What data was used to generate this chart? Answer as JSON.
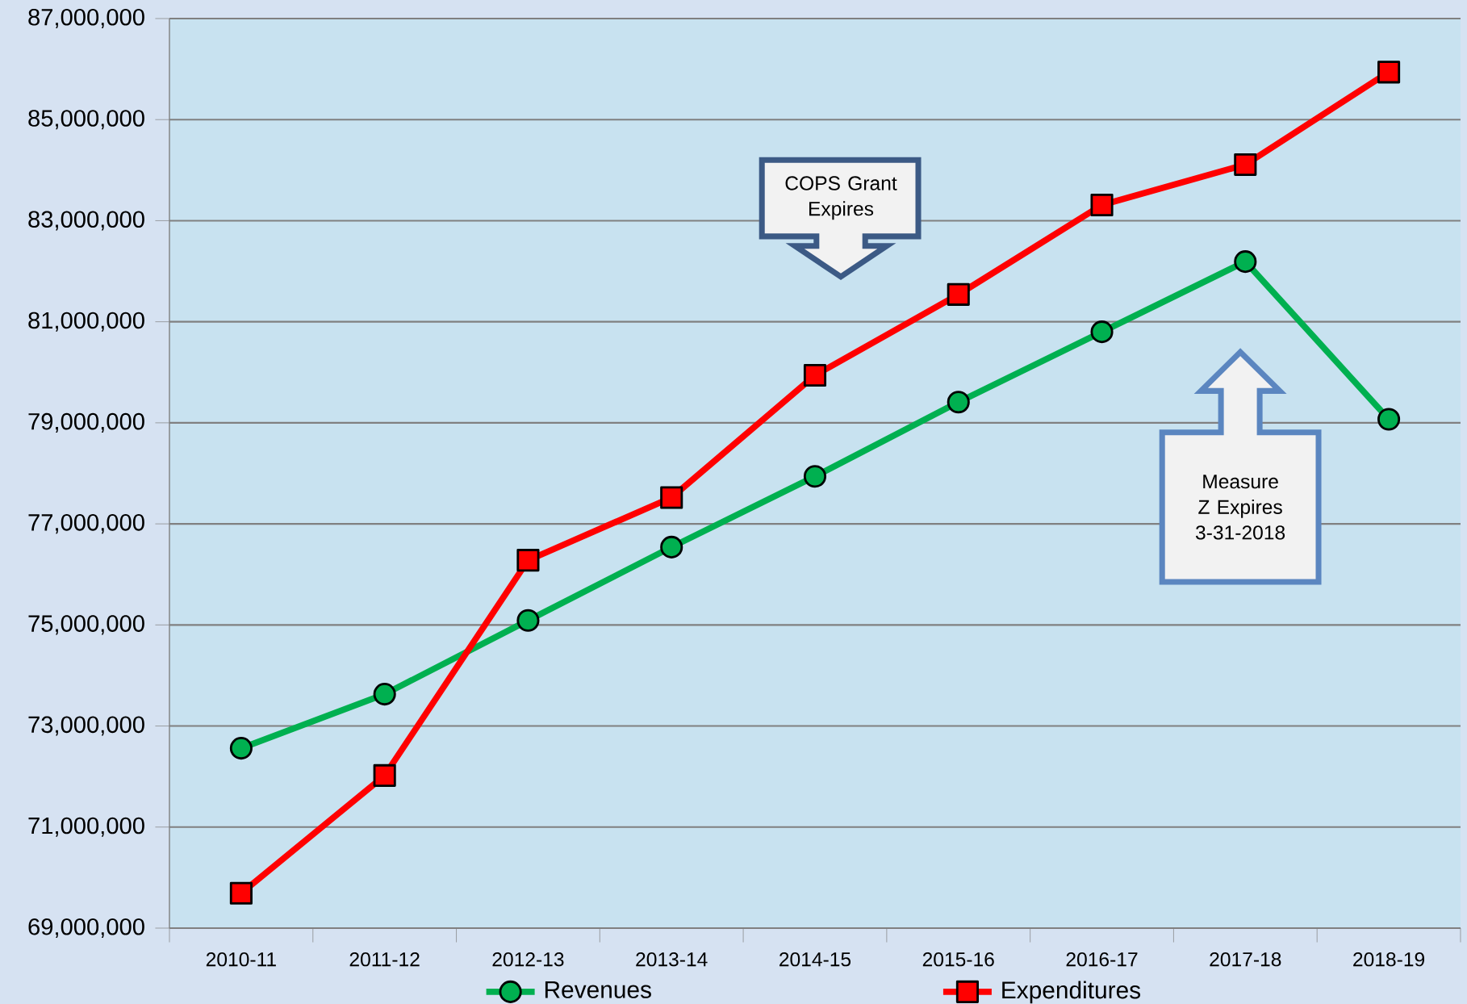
{
  "chart_data": {
    "type": "line",
    "categories": [
      "2010-11",
      "2011-12",
      "2012-13",
      "2013-14",
      "2014-15",
      "2015-16",
      "2016-17",
      "2017-18",
      "2018-19"
    ],
    "series": [
      {
        "name": "Revenues",
        "color": "#00b050",
        "marker": "circle",
        "values": [
          72560000,
          73630000,
          75090000,
          76540000,
          77940000,
          79410000,
          80800000,
          82190000,
          79070000
        ]
      },
      {
        "name": "Expenditures",
        "color": "#ff0000",
        "marker": "square",
        "values": [
          69690000,
          72020000,
          76280000,
          77520000,
          79940000,
          81540000,
          83310000,
          84110000,
          85940000
        ]
      }
    ],
    "ylim": [
      69000000,
      87000000
    ],
    "yticks": [
      {
        "value": 69000000,
        "label": "69,000,000"
      },
      {
        "value": 71000000,
        "label": "71,000,000"
      },
      {
        "value": 73000000,
        "label": "73,000,000"
      },
      {
        "value": 75000000,
        "label": "75,000,000"
      },
      {
        "value": 77000000,
        "label": "77,000,000"
      },
      {
        "value": 79000000,
        "label": "79,000,000"
      },
      {
        "value": 81000000,
        "label": "81,000,000"
      },
      {
        "value": 83000000,
        "label": "83,000,000"
      },
      {
        "value": 85000000,
        "label": "85,000,000"
      },
      {
        "value": 87000000,
        "label": "87,000,000"
      }
    ],
    "grid": "y",
    "legend": "bottom",
    "annotations": [
      "COPS Grant Expires",
      "Measure Z Expires 3-31-2018"
    ]
  }
}
